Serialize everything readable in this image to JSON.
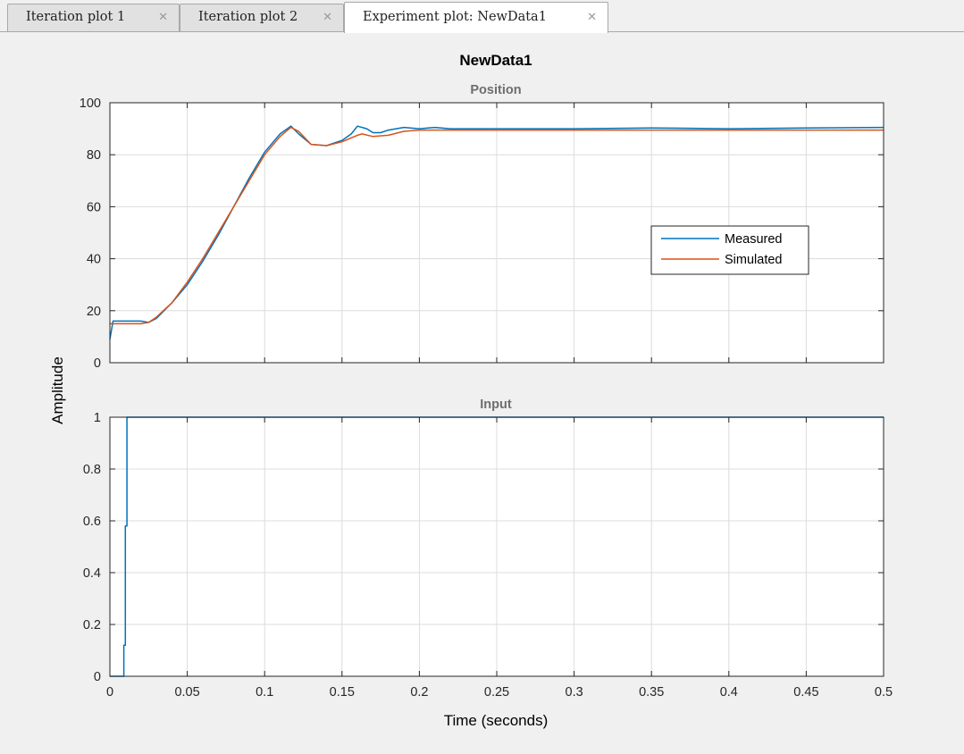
{
  "tabs": [
    {
      "label": "Iteration plot 1",
      "active": false
    },
    {
      "label": "Iteration plot 2",
      "active": false
    },
    {
      "label": "Experiment plot: NewData1",
      "active": true
    }
  ],
  "tab_close_glyph": "✕",
  "colors": {
    "measured": "#0072bd",
    "simulated": "#d95319",
    "axes_bg": "#ffffff",
    "figure_bg": "#f0f0f0",
    "grid": "#dcdcdc",
    "subtitle": "#6e6e6e"
  },
  "chart_data": {
    "type": "line",
    "title": "NewData1",
    "ylabel": "Amplitude",
    "xlabel": "Time (seconds)",
    "xlim": [
      0,
      0.5
    ],
    "xticks": [
      "0",
      "0.05",
      "0.1",
      "0.15",
      "0.2",
      "0.25",
      "0.3",
      "0.35",
      "0.4",
      "0.45",
      "0.5"
    ],
    "grid": true,
    "subplots": [
      {
        "title": "Position",
        "ylim": [
          0,
          100
        ],
        "yticks": [
          "0",
          "20",
          "40",
          "60",
          "80",
          "100"
        ],
        "legend": {
          "location": "right",
          "entries": [
            "Measured",
            "Simulated"
          ]
        },
        "series": [
          {
            "name": "Measured",
            "x": [
              0,
              0.002,
              0.02,
              0.025,
              0.03,
              0.04,
              0.05,
              0.06,
              0.07,
              0.08,
              0.09,
              0.1,
              0.11,
              0.117,
              0.122,
              0.13,
              0.14,
              0.15,
              0.156,
              0.16,
              0.166,
              0.17,
              0.175,
              0.18,
              0.19,
              0.2,
              0.21,
              0.22,
              0.25,
              0.3,
              0.35,
              0.4,
              0.45,
              0.5
            ],
            "y": [
              9,
              16,
              16,
              15.5,
              17,
              23,
              30,
              39,
              49,
              60,
              71,
              81,
              88,
              91,
              88,
              84,
              83.5,
              85.5,
              88,
              91,
              90,
              88.5,
              88.5,
              89.5,
              90.5,
              90,
              90.5,
              90,
              90,
              90,
              90.3,
              90,
              90.3,
              90.5
            ]
          },
          {
            "name": "Simulated",
            "x": [
              0,
              0.02,
              0.025,
              0.03,
              0.04,
              0.05,
              0.06,
              0.07,
              0.08,
              0.09,
              0.1,
              0.11,
              0.117,
              0.122,
              0.13,
              0.14,
              0.15,
              0.16,
              0.163,
              0.17,
              0.18,
              0.19,
              0.2,
              0.21,
              0.25,
              0.3,
              0.4,
              0.5
            ],
            "y": [
              15,
              15,
              15.5,
              17.5,
              23,
              31,
              40,
              50,
              60,
              70,
              80,
              87,
              90.5,
              89,
              84,
              83.5,
              85,
              87.5,
              88,
              87,
              87.5,
              89,
              89.5,
              89.5,
              89.5,
              89.5,
              89.5,
              89.5
            ]
          }
        ]
      },
      {
        "title": "Input",
        "ylim": [
          0,
          1
        ],
        "yticks": [
          "0",
          "0.2",
          "0.4",
          "0.6",
          "0.8",
          "1"
        ],
        "series": [
          {
            "name": "Measured",
            "x": [
              0,
              0.008,
              0.009,
              0.009,
              0.01,
              0.01,
              0.011,
              0.011,
              0.5
            ],
            "y": [
              0,
              0,
              0,
              0.12,
              0.12,
              0.58,
              0.58,
              1,
              1
            ]
          }
        ]
      }
    ]
  }
}
